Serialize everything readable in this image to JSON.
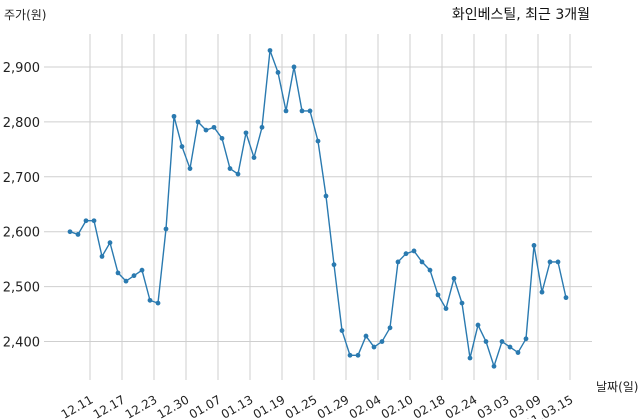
{
  "chart_data": {
    "type": "line",
    "title": "화인베스틸, 최근 3개월",
    "ylabel": "주가(원)",
    "xlabel": "날짜(일)",
    "ylim": [
      2330,
      2960
    ],
    "yticks": [
      2400,
      2500,
      2600,
      2700,
      2800,
      2900
    ],
    "ytick_labels": [
      "2,400",
      "2,500",
      "2,600",
      "2,700",
      "2,800",
      "2,900"
    ],
    "xtick_labels": [
      "12.11",
      "12.17",
      "12.23",
      "12.30",
      "01.07",
      "01.13",
      "01.19",
      "01.25",
      "01.29",
      "02.04",
      "02.10",
      "02.18",
      "02.24",
      "03.03",
      "03.09",
      "21.03.15"
    ],
    "xtick_positions": [
      2.5,
      6.5,
      10.5,
      14.5,
      18.5,
      22.5,
      26.5,
      30.5,
      34.5,
      38.5,
      42.5,
      46.5,
      50.5,
      54.5,
      58.5,
      62.5
    ],
    "grid": true,
    "series": [
      {
        "values": [
          2600,
          2595,
          2620,
          2620,
          2555,
          2580,
          2525,
          2510,
          2520,
          2530,
          2475,
          2470,
          2605,
          2810,
          2755,
          2715,
          2800,
          2785,
          2790,
          2770,
          2715,
          2705,
          2780,
          2735,
          2790,
          2930,
          2890,
          2820,
          2900,
          2820,
          2820,
          2765,
          2665,
          2540,
          2420,
          2375,
          2375,
          2410,
          2390,
          2400,
          2425,
          2545,
          2560,
          2565,
          2545,
          2530,
          2485,
          2460,
          2515,
          2470,
          2370,
          2430,
          2400,
          2355,
          2400,
          2390,
          2380,
          2405,
          2575,
          2490,
          2545,
          2545,
          2480
        ]
      }
    ]
  }
}
